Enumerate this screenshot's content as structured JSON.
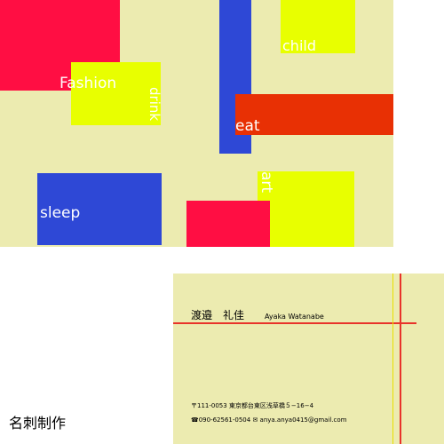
{
  "design": {
    "words": {
      "fashion": "Fashion",
      "drink": "drink",
      "child": "child",
      "eat": "eat",
      "sleep": "sleep",
      "art": "art"
    },
    "colors": {
      "background": "#ecebb0",
      "red": "#ff0e43",
      "yellow": "#e8ff00",
      "blue": "#2e48d6",
      "orange_red": "#e83004",
      "text": "#ffffff"
    }
  },
  "card": {
    "name_jp": "渡邉　礼佳",
    "name_en": "Ayaka Watanabe",
    "address": "〒111-0053 東京都台東区浅草橋５−16−4",
    "contact": "☎090-62561-0504 ✉ anya.anya0415@gmail.com",
    "colors": {
      "background": "#ecebb0",
      "line_red": "#e8332a",
      "line_yellow": "#e8e000"
    }
  },
  "caption": "名刺制作"
}
